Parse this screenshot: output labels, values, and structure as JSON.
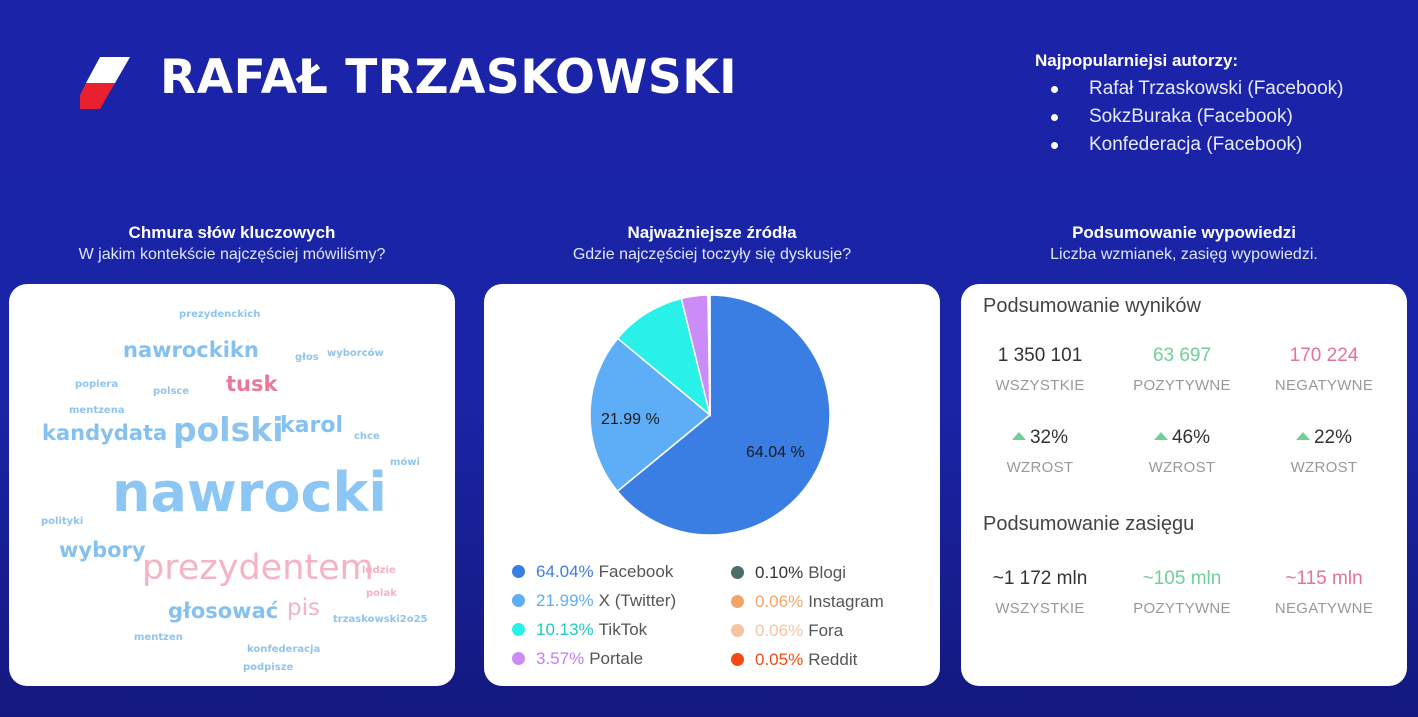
{
  "header": {
    "title": "RAFAŁ TRZASKOWSKI"
  },
  "authors": {
    "title": "Najpopularniejsi autorzy:",
    "items": [
      "Rafał Trzaskowski (Facebook)",
      "SokzBuraka (Facebook)",
      "Konfederacja (Facebook)"
    ]
  },
  "sections": {
    "words": {
      "title": "Chmura słów kluczowych",
      "subtitle": "W jakim kontekście najczęściej mówiliśmy?"
    },
    "sources": {
      "title": "Najważniejsze źródła",
      "subtitle": "Gdzie najczęściej toczyły się dyskusje?"
    },
    "summary": {
      "title": "Podsumowanie wypowiedzi",
      "subtitle": "Liczba wzmianek, zasięg wypowiedzi."
    }
  },
  "word_cloud": [
    {
      "text": "prezydenckich",
      "color": "#90c4ee"
    },
    {
      "text": "nawrockikn",
      "color": "#85c1f0"
    },
    {
      "text": "głos",
      "color": "#90c4ee"
    },
    {
      "text": "wyborców",
      "color": "#90c4ee"
    },
    {
      "text": "popiera",
      "color": "#90c4ee"
    },
    {
      "text": "tusk",
      "color": "#ea7898"
    },
    {
      "text": "polsce",
      "color": "#90c4ee"
    },
    {
      "text": "mentzena",
      "color": "#90c4ee"
    },
    {
      "text": "kandydata",
      "color": "#85c1f0"
    },
    {
      "text": "polski",
      "color": "#8cc4f0"
    },
    {
      "text": "karol",
      "color": "#85c1f0"
    },
    {
      "text": "chce",
      "color": "#90c4ee"
    },
    {
      "text": "mówi",
      "color": "#90c4ee"
    },
    {
      "text": "nawrocki",
      "color": "#8cc6f4"
    },
    {
      "text": "polityki",
      "color": "#90c4ee"
    },
    {
      "text": "wybory",
      "color": "#85c1f0"
    },
    {
      "text": "prezydentem",
      "color": "#f5b3c4"
    },
    {
      "text": "ludzie",
      "color": "#f5b3c4"
    },
    {
      "text": "polak",
      "color": "#f5b3c4"
    },
    {
      "text": "głosować",
      "color": "#85c1f0"
    },
    {
      "text": "pis",
      "color": "#f5b3c4"
    },
    {
      "text": "trzaskowski2o25",
      "color": "#90c4ee"
    },
    {
      "text": "mentzen",
      "color": "#90c4ee"
    },
    {
      "text": "konfederacja",
      "color": "#90c4ee"
    },
    {
      "text": "podpisze",
      "color": "#90c4ee"
    }
  ],
  "chart_data": {
    "type": "pie",
    "title": "Najważniejsze źródła",
    "slices": [
      {
        "name": "Facebook",
        "value": 64.04,
        "color": "#3b7ee3",
        "label": "64.04 %"
      },
      {
        "name": "X (Twitter)",
        "value": 21.99,
        "color": "#5eaef7",
        "label": "21.99 %"
      },
      {
        "name": "TikTok",
        "value": 10.13,
        "color": "#29f0e8",
        "label": ""
      },
      {
        "name": "Portale",
        "value": 3.57,
        "color": "#cc8cf8",
        "label": ""
      },
      {
        "name": "Blogi",
        "value": 0.1,
        "color": "#4b6e6a",
        "label": ""
      },
      {
        "name": "Instagram",
        "value": 0.06,
        "color": "#f2a56a",
        "label": ""
      },
      {
        "name": "Fora",
        "value": 0.06,
        "color": "#f5c4a0",
        "label": ""
      },
      {
        "name": "Reddit",
        "value": 0.05,
        "color": "#f24b16",
        "label": ""
      }
    ],
    "legend": [
      {
        "pct": "64.04%",
        "name": "Facebook",
        "color": "#3b7ee3",
        "pct_color": "#3b7ee3"
      },
      {
        "pct": "21.99%",
        "name": "X (Twitter)",
        "color": "#5eaef7",
        "pct_color": "#5eaef7"
      },
      {
        "pct": "10.13%",
        "name": "TikTok",
        "color": "#29f0e8",
        "pct_color": "#1ec9c4"
      },
      {
        "pct": "3.57%",
        "name": "Portale",
        "color": "#cc8cf8",
        "pct_color": "#c27ef5"
      },
      {
        "pct": "0.10%",
        "name": "Blogi",
        "color": "#4b6e6a",
        "pct_color": "#333333"
      },
      {
        "pct": "0.06%",
        "name": "Instagram",
        "color": "#f2a56a",
        "pct_color": "#f2a56a"
      },
      {
        "pct": "0.06%",
        "name": "Fora",
        "color": "#f5c4a0",
        "pct_color": "#f5c4a0"
      },
      {
        "pct": "0.05%",
        "name": "Reddit",
        "color": "#f24b16",
        "pct_color": "#f24b16"
      }
    ]
  },
  "summary": {
    "results_title": "Podsumowanie wyników",
    "results": [
      {
        "value": "1 350 101",
        "label": "WSZYSTKIE",
        "kind": "all"
      },
      {
        "value": "63 697",
        "label": "POZYTYWNE",
        "kind": "pos"
      },
      {
        "value": "170 224",
        "label": "NEGATYWNE",
        "kind": "neg"
      }
    ],
    "growth": [
      {
        "value": "32%",
        "label": "WZROST"
      },
      {
        "value": "46%",
        "label": "WZROST"
      },
      {
        "value": "22%",
        "label": "WZROST"
      }
    ],
    "reach_title": "Podsumowanie zasięgu",
    "reach": [
      {
        "value": "~1 172 mln",
        "label": "WSZYSTKIE",
        "kind": "all"
      },
      {
        "value": "~105 mln",
        "label": "POZYTYWNE",
        "kind": "pos"
      },
      {
        "value": "~115 mln",
        "label": "NEGATYWNE",
        "kind": "neg"
      }
    ]
  }
}
